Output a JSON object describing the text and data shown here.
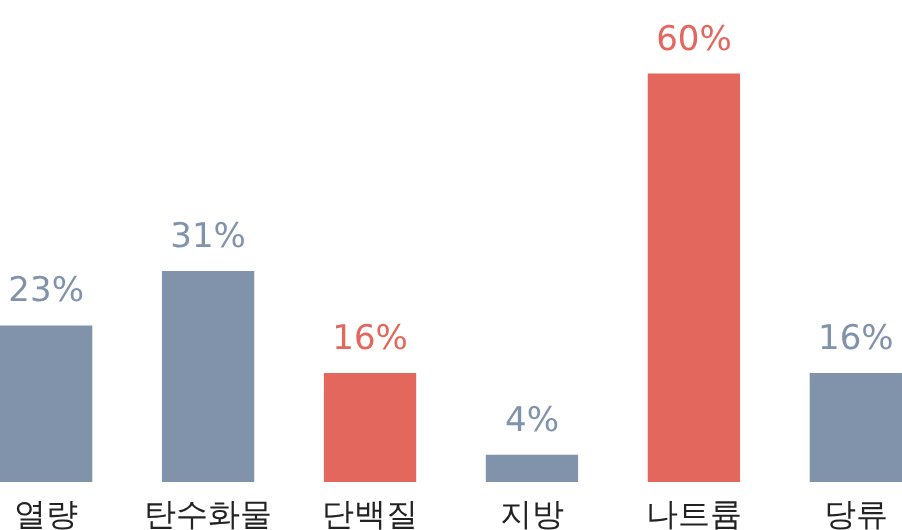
{
  "chart_data": {
    "type": "bar",
    "categories": [
      "열량",
      "탄수화물",
      "단백질",
      "지방",
      "나트륨",
      "당류"
    ],
    "values": [
      23,
      31,
      16,
      4,
      60,
      16
    ],
    "colors": [
      "#8193ab",
      "#8193ab",
      "#e4675e",
      "#8193ab",
      "#e4675e",
      "#8193ab"
    ],
    "value_labels": [
      "23%",
      "31%",
      "16%",
      "4%",
      "60%",
      "16%"
    ]
  }
}
